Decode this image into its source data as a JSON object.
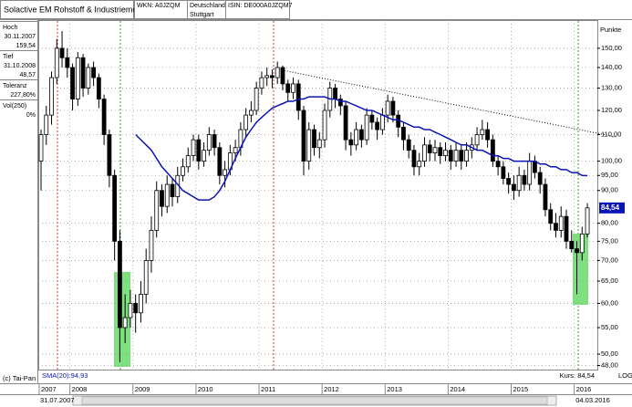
{
  "header": {
    "title": "Solactive EM Rohstoff & Industriemetall TR",
    "wkn": "WKN: A0JZQM",
    "country": "Deutschland",
    "exchange": "Stuttgart",
    "isin": "ISIN: DE000A0JZQM7"
  },
  "sidebar": [
    {
      "label": "Hoch",
      "lines": [
        "30.11.2007",
        "159,54"
      ]
    },
    {
      "label": "Tief",
      "lines": [
        "31.10.2008",
        "48,57"
      ]
    },
    {
      "label": "Toleranz",
      "lines": [
        "227,80%"
      ]
    },
    {
      "label": "Vol(250)",
      "lines": [
        "0%"
      ]
    }
  ],
  "footer": {
    "copyright": "(c) Tai-Pan",
    "start_date": "31.07.2007",
    "end_date": "04.03.2016",
    "scale": "LOG"
  },
  "chart_data": {
    "type": "candlestick",
    "y_axis_title": "Punkte",
    "log_scale": true,
    "grid": true,
    "ylim": [
      47.3,
      166
    ],
    "yticks": [
      {
        "value": 150,
        "label": "150,00"
      },
      {
        "value": 140,
        "label": "140,00"
      },
      {
        "value": 130,
        "label": "130,00"
      },
      {
        "value": 120,
        "label": "120,00"
      },
      {
        "value": 110,
        "label": "110,00"
      },
      {
        "value": 100,
        "label": "100,00"
      },
      {
        "value": 95,
        "label": "95,00"
      },
      {
        "value": 90,
        "label": "90,00"
      },
      {
        "value": 80,
        "label": "80,00"
      },
      {
        "value": 75,
        "label": "75,00"
      },
      {
        "value": 70,
        "label": "70,00"
      },
      {
        "value": 65,
        "label": "65,00"
      },
      {
        "value": 60,
        "label": "60,00"
      },
      {
        "value": 55,
        "label": "55,00"
      },
      {
        "value": 50,
        "label": "50,00"
      },
      {
        "value": 48,
        "label": "48,00"
      }
    ],
    "categories": [
      "2007",
      null,
      null,
      null,
      null,
      null,
      "2008",
      null,
      null,
      null,
      null,
      null,
      null,
      null,
      null,
      null,
      null,
      null,
      "2009",
      null,
      null,
      null,
      null,
      null,
      null,
      null,
      null,
      null,
      null,
      null,
      "2010",
      null,
      null,
      null,
      null,
      null,
      null,
      null,
      null,
      null,
      null,
      null,
      "2011",
      null,
      null,
      null,
      null,
      null,
      null,
      null,
      null,
      null,
      null,
      null,
      "2012",
      null,
      null,
      null,
      null,
      null,
      null,
      null,
      null,
      null,
      null,
      null,
      "2013",
      null,
      null,
      null,
      null,
      null,
      null,
      null,
      null,
      null,
      null,
      null,
      "2014",
      null,
      null,
      null,
      null,
      null,
      null,
      null,
      null,
      null,
      null,
      null,
      "2015",
      null,
      null,
      null,
      null,
      null,
      null,
      null,
      null,
      null,
      null,
      null,
      "2016",
      null,
      null
    ],
    "open": [
      100,
      110,
      118,
      135,
      150,
      145,
      140,
      125,
      145,
      130,
      140,
      135,
      125,
      110,
      95,
      75,
      55,
      57,
      60,
      58,
      62,
      70,
      78,
      90,
      85,
      92,
      88,
      95,
      98,
      102,
      108,
      100,
      104,
      110,
      105,
      95,
      97,
      103,
      105,
      112,
      118,
      120,
      130,
      135,
      136,
      135,
      140,
      132,
      128,
      132,
      120,
      100,
      112,
      105,
      108,
      120,
      130,
      125,
      122,
      108,
      106,
      112,
      108,
      118,
      115,
      112,
      118,
      124,
      118,
      113,
      108,
      104,
      98,
      100,
      106,
      103,
      105,
      102,
      104,
      100,
      104,
      100,
      104,
      106,
      110,
      112,
      108,
      100,
      98,
      94,
      92,
      90,
      95,
      92,
      100,
      96,
      92,
      84,
      80,
      78,
      82,
      75,
      73,
      72,
      77
    ],
    "high": [
      112,
      122,
      138,
      155,
      159.54,
      150,
      142,
      148,
      147,
      142,
      143,
      137,
      127,
      112,
      97,
      78,
      62,
      63,
      62,
      65,
      73,
      82,
      93,
      92,
      95,
      94,
      98,
      101,
      105,
      110,
      110,
      107,
      113,
      112,
      107,
      100,
      106,
      108,
      115,
      121,
      124,
      133,
      138,
      140,
      139,
      143,
      141,
      134,
      135,
      134,
      122,
      115,
      114,
      111,
      123,
      133,
      132,
      127,
      124,
      111,
      115,
      114,
      121,
      120,
      117,
      121,
      127,
      126,
      120,
      115,
      110,
      106,
      103,
      109,
      108,
      108,
      107,
      107,
      106,
      107,
      106,
      107,
      109,
      113,
      116,
      115,
      110,
      102,
      100,
      96,
      95,
      98,
      97,
      103,
      102,
      98,
      94,
      86,
      83,
      85,
      84,
      78,
      75,
      79,
      86
    ],
    "low": [
      90,
      106,
      114,
      132,
      140,
      135,
      120,
      122,
      126,
      127,
      131,
      121,
      106,
      91,
      70,
      48.57,
      52,
      55,
      54,
      56,
      60,
      67,
      76,
      82,
      83,
      85,
      86,
      93,
      96,
      100,
      97,
      98,
      102,
      102,
      92,
      91,
      95,
      100,
      102,
      109,
      115,
      118,
      127,
      131,
      130,
      132,
      129,
      124,
      125,
      116,
      95,
      97,
      102,
      101,
      105,
      117,
      121,
      118,
      104,
      102,
      104,
      105,
      106,
      112,
      108,
      110,
      115,
      115,
      109,
      104,
      101,
      95,
      95,
      98,
      100,
      100,
      99,
      100,
      97,
      98,
      97,
      98,
      101,
      104,
      108,
      105,
      98,
      95,
      92,
      89,
      87,
      88,
      90,
      90,
      94,
      89,
      82,
      78,
      76,
      76,
      73,
      72,
      62,
      70,
      76
    ],
    "close": [
      110,
      118,
      135,
      150,
      145,
      140,
      125,
      145,
      130,
      140,
      135,
      125,
      110,
      95,
      75,
      55,
      57,
      60,
      58,
      62,
      70,
      78,
      90,
      85,
      92,
      88,
      95,
      98,
      102,
      108,
      100,
      104,
      110,
      105,
      95,
      97,
      103,
      105,
      112,
      118,
      120,
      130,
      135,
      136,
      135,
      140,
      132,
      128,
      132,
      120,
      100,
      112,
      105,
      108,
      120,
      130,
      125,
      122,
      108,
      106,
      112,
      108,
      118,
      115,
      112,
      118,
      124,
      118,
      113,
      108,
      104,
      98,
      100,
      106,
      103,
      105,
      102,
      104,
      100,
      104,
      100,
      104,
      106,
      110,
      112,
      108,
      100,
      98,
      94,
      92,
      90,
      95,
      92,
      100,
      96,
      92,
      84,
      80,
      78,
      82,
      75,
      73,
      72,
      77,
      84.54
    ],
    "up_color": "#ffffff",
    "down_color": "#000000",
    "sma": {
      "name": "SMA(20):94,93",
      "color": "#0a14b4",
      "values": [
        null,
        null,
        null,
        null,
        null,
        null,
        null,
        null,
        null,
        null,
        null,
        null,
        null,
        null,
        null,
        null,
        null,
        null,
        110,
        108,
        106,
        104,
        101,
        98,
        96,
        94,
        92,
        90,
        89,
        88,
        87,
        87,
        87,
        88,
        90,
        93,
        97,
        101,
        105,
        109,
        112,
        115,
        117,
        119,
        121,
        122,
        123,
        124,
        124,
        125,
        125,
        126,
        126,
        126,
        126,
        125,
        125,
        124,
        124,
        123,
        122,
        121,
        120,
        120,
        119,
        118,
        117,
        116,
        116,
        115,
        114,
        113,
        113,
        112,
        112,
        111,
        110,
        109,
        108,
        107,
        106,
        106,
        105,
        104,
        104,
        103,
        102,
        102,
        101,
        101,
        100,
        100,
        100,
        100,
        100,
        99,
        99,
        98,
        98,
        97,
        97,
        96,
        96,
        95,
        94.93
      ]
    },
    "last_price_label": "84,54",
    "price_label": "Kurs: 84,54"
  }
}
